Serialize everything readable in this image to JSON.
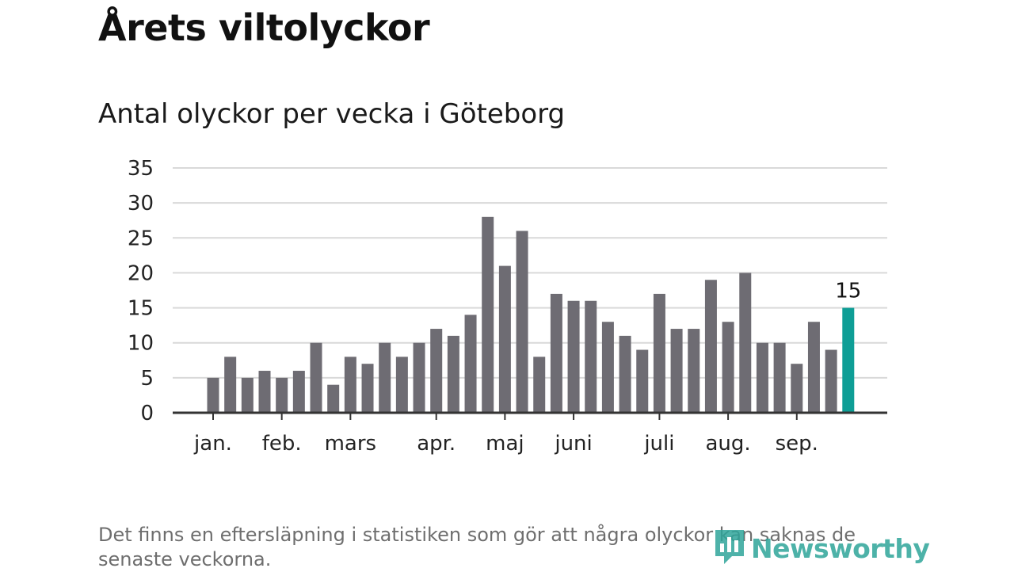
{
  "title": "Årets viltolyckor",
  "subtitle": "Antal olyckor per vecka i Göteborg",
  "footnote": "Det finns en eftersläpning i statistiken som gör att några olyckor kan saknas de senaste veckorna.",
  "brand": "Newsworthy",
  "colors": {
    "bar": "#6e6c73",
    "highlight": "#0e9e96",
    "grid": "#d9d9d9",
    "axis": "#333333",
    "brand": "#2fa59a"
  },
  "chart_data": {
    "type": "bar",
    "values": [
      5,
      8,
      5,
      6,
      5,
      6,
      10,
      4,
      8,
      7,
      10,
      8,
      10,
      12,
      11,
      14,
      28,
      21,
      26,
      8,
      17,
      16,
      16,
      13,
      11,
      9,
      17,
      12,
      12,
      19,
      13,
      20,
      10,
      10,
      7,
      13,
      9,
      15
    ],
    "highlight_index": 37,
    "highlight_label": "15",
    "ylim": [
      0,
      35
    ],
    "yticks": [
      0,
      5,
      10,
      15,
      20,
      25,
      30,
      35
    ],
    "month_labels": [
      {
        "label": "jan.",
        "bar": 0
      },
      {
        "label": "feb.",
        "bar": 4
      },
      {
        "label": "mars",
        "bar": 8
      },
      {
        "label": "apr.",
        "bar": 13
      },
      {
        "label": "maj",
        "bar": 17
      },
      {
        "label": "juni",
        "bar": 21
      },
      {
        "label": "juli",
        "bar": 26
      },
      {
        "label": "aug.",
        "bar": 30
      },
      {
        "label": "sep.",
        "bar": 34
      }
    ],
    "grid": true,
    "legend": "none"
  }
}
